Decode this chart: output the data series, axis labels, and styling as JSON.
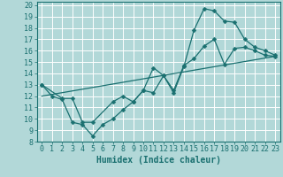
{
  "xlabel": "Humidex (Indice chaleur)",
  "background_color": "#b2d8d8",
  "grid_color": "#ffffff",
  "line_color": "#1a7070",
  "xlim": [
    -0.5,
    23.5
  ],
  "ylim": [
    8,
    20.3
  ],
  "xticks": [
    0,
    1,
    2,
    3,
    4,
    5,
    6,
    7,
    8,
    9,
    10,
    11,
    12,
    13,
    14,
    15,
    16,
    17,
    18,
    19,
    20,
    21,
    22,
    23
  ],
  "yticks": [
    8,
    9,
    10,
    11,
    12,
    13,
    14,
    15,
    16,
    17,
    18,
    19,
    20
  ],
  "line1_x": [
    0,
    1,
    2,
    3,
    4,
    5,
    6,
    7,
    8,
    9,
    10,
    11,
    12,
    13,
    14,
    15,
    16,
    17,
    18,
    19,
    20,
    21,
    22,
    23
  ],
  "line1_y": [
    13,
    12,
    11.7,
    9.7,
    9.5,
    8.5,
    9.5,
    10.0,
    10.8,
    11.5,
    12.5,
    12.3,
    13.8,
    12.3,
    14.6,
    17.8,
    19.7,
    19.5,
    18.6,
    18.5,
    17.0,
    16.3,
    16.0,
    15.6
  ],
  "line2_x": [
    0,
    2,
    3,
    4,
    5,
    7,
    8,
    9,
    10,
    11,
    12,
    13,
    14,
    15,
    16,
    17,
    18,
    19,
    20,
    21,
    22,
    23
  ],
  "line2_y": [
    13,
    11.8,
    11.8,
    9.7,
    9.7,
    11.5,
    12.0,
    11.5,
    12.5,
    14.5,
    13.8,
    12.5,
    14.7,
    15.3,
    16.4,
    17.0,
    14.8,
    16.2,
    16.3,
    16.0,
    15.6,
    15.5
  ],
  "line3_x": [
    0,
    23
  ],
  "line3_y": [
    12,
    15.5
  ],
  "marker_size": 2.5,
  "linewidth": 0.9,
  "font_size_tick": 6,
  "font_size_label": 7
}
